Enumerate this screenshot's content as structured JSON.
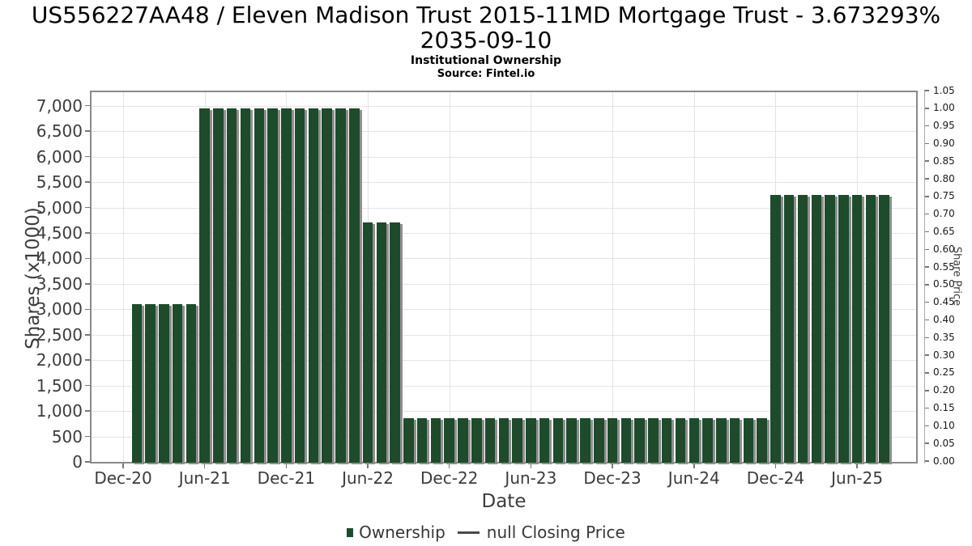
{
  "header": {
    "title_line1": "US556227AA48 / Eleven Madison Trust 2015-11MD Mortgage Trust - 3.673293%",
    "title_line2": "2035-09-10",
    "subtitle": "Institutional Ownership",
    "source": "Source: Fintel.io"
  },
  "legend": {
    "ownership_label": "Ownership",
    "price_label": "null Closing Price"
  },
  "colors": {
    "bar": "#1d4b2b",
    "bar_shadow": "#8f8f8f",
    "grid": "#e3e3e3",
    "plot_border": "#8a8a8a"
  },
  "chart_data": {
    "type": "bar",
    "title": "US556227AA48 / Eleven Madison Trust 2015-11MD Mortgage Trust - 3.673293% 2035-09-10",
    "subtitle": "Institutional Ownership",
    "source": "Source: Fintel.io",
    "xlabel": "Date",
    "ylabel_left": "Shares (x1000)",
    "ylabel_right": "Share Price",
    "series_name": "Ownership",
    "price_series_name": "null Closing Price",
    "grid": true,
    "legend_position": "bottom",
    "ylim_left": [
      0,
      7300
    ],
    "ylim_right": [
      0,
      1.05
    ],
    "left_tick_values": [
      0,
      500,
      1000,
      1500,
      2000,
      2500,
      3000,
      3500,
      4000,
      4500,
      5000,
      5500,
      6000,
      6500,
      7000
    ],
    "left_tick_labels": [
      "0",
      "500",
      "1,000",
      "1,500",
      "2,000",
      "2,500",
      "3,000",
      "3,500",
      "4,000",
      "4,500",
      "5,000",
      "5,500",
      "6,000",
      "6,500",
      "7,000"
    ],
    "right_tick_labels": [
      "0.00",
      "0.05",
      "0.10",
      "0.15",
      "0.20",
      "0.25",
      "0.30",
      "0.35",
      "0.40",
      "0.45",
      "0.50",
      "0.55",
      "0.60",
      "0.65",
      "0.70",
      "0.75",
      "0.80",
      "0.85",
      "0.90",
      "0.95",
      "1.00",
      "1.05"
    ],
    "x_tick_labels": [
      "Dec-20",
      "Jun-21",
      "Dec-21",
      "Jun-22",
      "Dec-22",
      "Jun-23",
      "Dec-23",
      "Jun-24",
      "Dec-24",
      "Jun-25"
    ],
    "x_tick_month_offsets": [
      0,
      6,
      12,
      18,
      24,
      30,
      36,
      42,
      48,
      54
    ],
    "categories": [
      "Jan-21",
      "Feb-21",
      "Mar-21",
      "Apr-21",
      "May-21",
      "Jun-21",
      "Jul-21",
      "Aug-21",
      "Sep-21",
      "Oct-21",
      "Nov-21",
      "Dec-21",
      "Jan-22",
      "Feb-22",
      "Mar-22",
      "Apr-22",
      "May-22",
      "Jun-22",
      "Jul-22",
      "Aug-22",
      "Sep-22",
      "Oct-22",
      "Nov-22",
      "Dec-22",
      "Jan-23",
      "Feb-23",
      "Mar-23",
      "Apr-23",
      "May-23",
      "Jun-23",
      "Jul-23",
      "Aug-23",
      "Sep-23",
      "Oct-23",
      "Nov-23",
      "Dec-23",
      "Jan-24",
      "Feb-24",
      "Mar-24",
      "Apr-24",
      "May-24",
      "Jun-24",
      "Jul-24",
      "Aug-24",
      "Sep-24",
      "Oct-24",
      "Nov-24",
      "Dec-24",
      "Jan-25",
      "Feb-25",
      "Mar-25",
      "Apr-25",
      "May-25",
      "Jun-25",
      "Jul-25",
      "Aug-25"
    ],
    "values": [
      3100,
      3100,
      3100,
      3100,
      3100,
      6950,
      6950,
      6950,
      6950,
      6950,
      6950,
      6950,
      6950,
      6950,
      6950,
      6950,
      6950,
      4700,
      4700,
      4700,
      860,
      860,
      860,
      860,
      860,
      860,
      860,
      860,
      860,
      860,
      860,
      860,
      860,
      860,
      860,
      860,
      860,
      860,
      860,
      860,
      860,
      860,
      860,
      860,
      860,
      860,
      860,
      5250,
      5250,
      5250,
      5250,
      5250,
      5250,
      5250,
      5250,
      5250
    ]
  }
}
